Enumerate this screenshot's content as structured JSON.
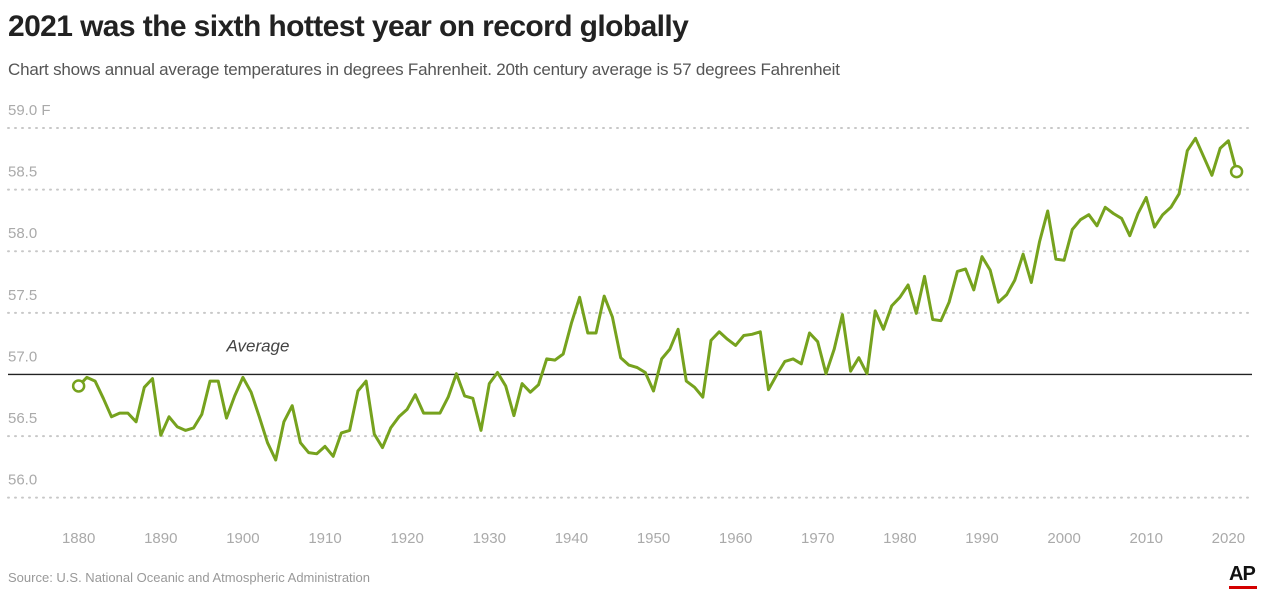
{
  "title": "2021 was the sixth hottest year on record globally",
  "subtitle": "Chart shows annual average temperatures in degrees Fahrenheit. 20th century average is 57 degrees Fahrenheit",
  "source": "Source: U.S. National Oceanic and Atmospheric Administration",
  "logo_text": "AP",
  "colors": {
    "line": "#76a21e",
    "average_line": "#222222",
    "grid": "#c8c8c8",
    "tick_text": "#aaaaaa",
    "logo_bar": "#d40000"
  },
  "chart_data": {
    "type": "line",
    "title": "2021 was the sixth hottest year on record globally",
    "xlabel": "",
    "ylabel": "",
    "xlim": [
      1877,
      2023
    ],
    "ylim": [
      55.9,
      59.0
    ],
    "y_ticks": [
      {
        "value": 59.0,
        "label": "59.0 F"
      },
      {
        "value": 58.5,
        "label": "58.5"
      },
      {
        "value": 58.0,
        "label": "58.0"
      },
      {
        "value": 57.5,
        "label": "57.5"
      },
      {
        "value": 57.0,
        "label": "57.0"
      },
      {
        "value": 56.5,
        "label": "56.5"
      },
      {
        "value": 56.0,
        "label": "56.0"
      }
    ],
    "x_ticks": [
      1880,
      1890,
      1900,
      1910,
      1920,
      1930,
      1940,
      1950,
      1960,
      1970,
      1980,
      1990,
      2000,
      2010,
      2020
    ],
    "grid": "horizontal dotted",
    "reference_line": {
      "value": 57.0,
      "label": "Average"
    },
    "highlighted_points": [
      1880,
      2021
    ],
    "x": [
      1880,
      1881,
      1882,
      1883,
      1884,
      1885,
      1886,
      1887,
      1888,
      1889,
      1890,
      1891,
      1892,
      1893,
      1894,
      1895,
      1896,
      1897,
      1898,
      1899,
      1900,
      1901,
      1902,
      1903,
      1904,
      1905,
      1906,
      1907,
      1908,
      1909,
      1910,
      1911,
      1912,
      1913,
      1914,
      1915,
      1916,
      1917,
      1918,
      1919,
      1920,
      1921,
      1922,
      1923,
      1924,
      1925,
      1926,
      1927,
      1928,
      1929,
      1930,
      1931,
      1932,
      1933,
      1934,
      1935,
      1936,
      1937,
      1938,
      1939,
      1940,
      1941,
      1942,
      1943,
      1944,
      1945,
      1946,
      1947,
      1948,
      1949,
      1950,
      1951,
      1952,
      1953,
      1954,
      1955,
      1956,
      1957,
      1958,
      1959,
      1960,
      1961,
      1962,
      1963,
      1964,
      1965,
      1966,
      1967,
      1968,
      1969,
      1970,
      1971,
      1972,
      1973,
      1974,
      1975,
      1976,
      1977,
      1978,
      1979,
      1980,
      1981,
      1982,
      1983,
      1984,
      1985,
      1986,
      1987,
      1988,
      1989,
      1990,
      1991,
      1992,
      1993,
      1994,
      1995,
      1996,
      1997,
      1998,
      1999,
      2000,
      2001,
      2002,
      2003,
      2004,
      2005,
      2006,
      2007,
      2008,
      2009,
      2010,
      2011,
      2012,
      2013,
      2014,
      2015,
      2016,
      2017,
      2018,
      2019,
      2020,
      2021
    ],
    "series": [
      {
        "values": [
          56.76,
          56.83,
          56.8,
          56.66,
          56.51,
          56.54,
          56.54,
          56.47,
          56.75,
          56.82,
          56.36,
          56.51,
          56.43,
          56.4,
          56.42,
          56.53,
          56.8,
          56.8,
          56.5,
          56.68,
          56.83,
          56.71,
          56.51,
          56.3,
          56.16,
          56.47,
          56.6,
          56.3,
          56.22,
          56.21,
          56.27,
          56.19,
          56.38,
          56.4,
          56.72,
          56.8,
          56.37,
          56.26,
          56.42,
          56.51,
          56.57,
          56.69,
          56.54,
          56.54,
          56.54,
          56.67,
          56.86,
          56.68,
          56.66,
          56.4,
          56.78,
          56.87,
          56.76,
          56.52,
          56.78,
          56.71,
          56.77,
          56.98,
          56.97,
          57.02,
          57.27,
          57.48,
          57.19,
          57.19,
          57.49,
          57.32,
          56.99,
          56.93,
          56.91,
          56.87,
          56.72,
          56.98,
          57.06,
          57.22,
          56.8,
          56.75,
          56.67,
          57.13,
          57.2,
          57.14,
          57.09,
          57.17,
          57.18,
          57.2,
          56.73,
          56.85,
          56.96,
          56.98,
          56.94,
          57.19,
          57.12,
          56.86,
          57.06,
          57.34,
          56.88,
          56.99,
          56.86,
          57.37,
          57.22,
          57.41,
          57.48,
          57.58,
          57.35,
          57.65,
          57.3,
          57.29,
          57.44,
          57.69,
          57.71,
          57.54,
          57.81,
          57.7,
          57.44,
          57.5,
          57.62,
          57.83,
          57.6,
          57.93,
          58.18,
          57.79,
          57.78,
          58.03,
          58.11,
          58.15,
          58.06,
          58.21,
          58.16,
          58.12,
          57.98,
          58.16,
          58.29,
          58.05,
          58.15,
          58.21,
          58.32,
          58.67,
          58.77,
          58.62,
          58.47,
          58.69,
          58.75,
          58.5
        ]
      }
    ]
  }
}
